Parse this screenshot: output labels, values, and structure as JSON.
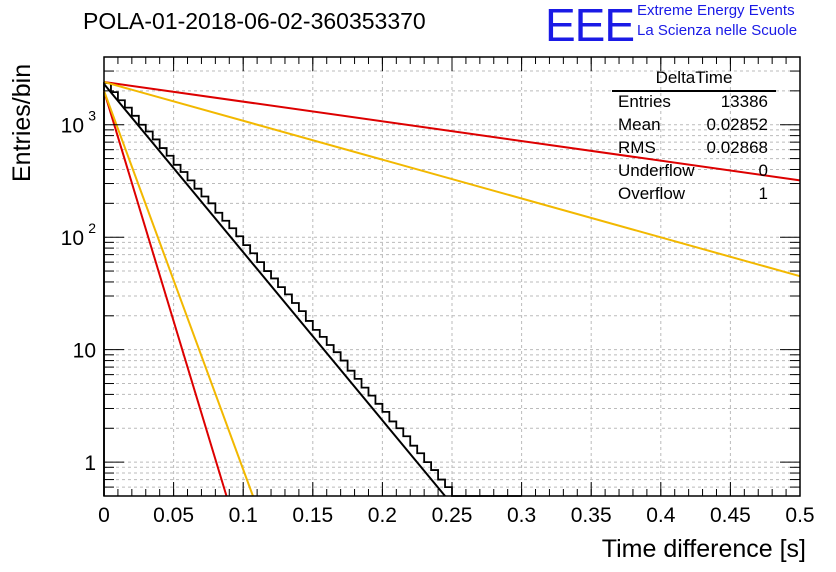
{
  "title": "POLA-01-2018-06-02-360353370",
  "logo": {
    "mark": "EEE",
    "line1": "Extreme Energy Events",
    "line2": "La Scienza nelle Scuole",
    "color": "#1a1ae6"
  },
  "stats": {
    "name": "DeltaTime",
    "rows": [
      {
        "label": "Entries",
        "value": "13386"
      },
      {
        "label": "Mean",
        "value": "0.02852"
      },
      {
        "label": "RMS",
        "value": "0.02868"
      },
      {
        "label": "Underflow",
        "value": "0"
      },
      {
        "label": "Overflow",
        "value": "1"
      }
    ]
  },
  "chart_data": {
    "type": "line",
    "xlabel": "Time difference [s]",
    "ylabel": "Entries/bin",
    "xlim": [
      0,
      0.5
    ],
    "ylim": [
      0.5,
      4000
    ],
    "yscale": "log",
    "grid": true,
    "xticks": [
      "0",
      "0.05",
      "0.1",
      "0.15",
      "0.2",
      "0.25",
      "0.3",
      "0.35",
      "0.4",
      "0.45",
      "0.5"
    ],
    "yticks": [
      {
        "value": 1,
        "label": "1"
      },
      {
        "value": 10,
        "label": "10"
      },
      {
        "value": 100,
        "label": "10",
        "exp": "2"
      },
      {
        "value": 1000,
        "label": "10",
        "exp": "3"
      }
    ],
    "histogram": {
      "bin_width": 0.005,
      "color": "#000000",
      "values": [
        2350,
        1950,
        1650,
        1420,
        1200,
        1000,
        870,
        740,
        620,
        530,
        440,
        380,
        320,
        270,
        230,
        200,
        165,
        140,
        120,
        102,
        85,
        72,
        60,
        50,
        43,
        36,
        31,
        26,
        22,
        18,
        15,
        13,
        11,
        9.5,
        8,
        6.5,
        5.5,
        4.6,
        3.9,
        3.3,
        2.8,
        2.3,
        2.0,
        1.7,
        1.4,
        1.2,
        1.0,
        0.85,
        0.7,
        0.6,
        0.5,
        0.5,
        0.5,
        0.5,
        0.5,
        0.5,
        0.5,
        0.5,
        0.5,
        0.5
      ]
    },
    "fit_lines": [
      {
        "name": "",
        "color": "#000000",
        "points": [
          [
            0,
            2300
          ],
          [
            0.245,
            0.5
          ]
        ]
      },
      {
        "name": "",
        "color": "#dd0000",
        "points": [
          [
            0,
            2400
          ],
          [
            0.5,
            320
          ]
        ]
      },
      {
        "name": "",
        "color": "#f2b800",
        "points": [
          [
            0,
            2400
          ],
          [
            0.5,
            45
          ]
        ]
      },
      {
        "name": "",
        "color": "#dd0000",
        "points": [
          [
            0,
            2000
          ],
          [
            0.088,
            0.5
          ]
        ]
      },
      {
        "name": "",
        "color": "#f2b800",
        "points": [
          [
            0,
            2000
          ],
          [
            0.107,
            0.5
          ]
        ]
      }
    ]
  }
}
